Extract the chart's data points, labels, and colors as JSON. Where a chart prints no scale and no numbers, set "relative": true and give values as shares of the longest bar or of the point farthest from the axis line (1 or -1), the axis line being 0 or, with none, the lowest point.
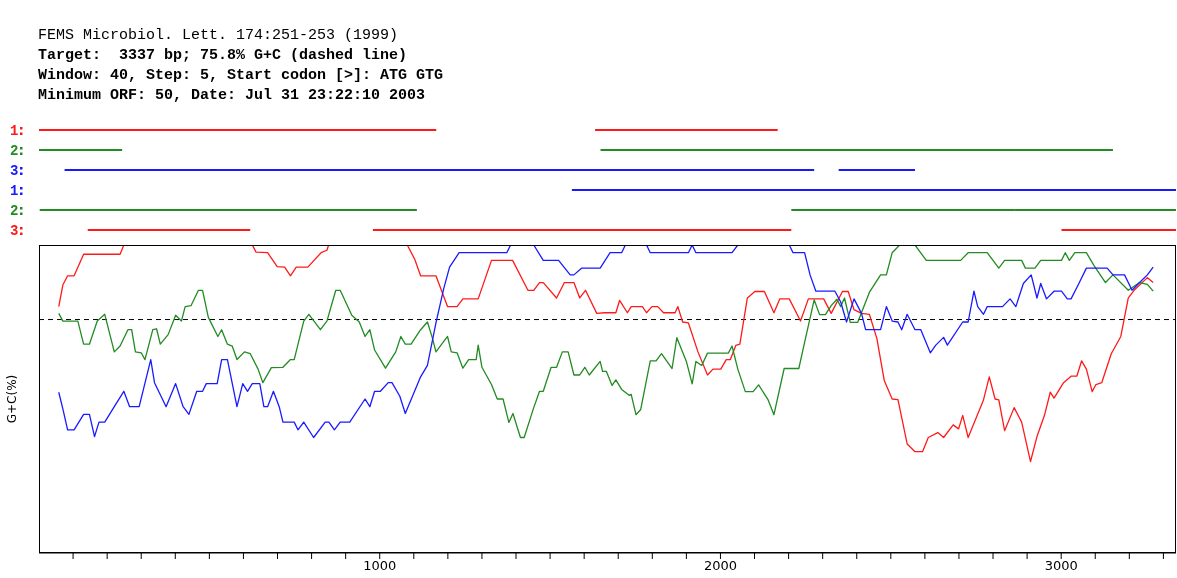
{
  "chart_data": [
    {
      "type": "bar",
      "orientation": "horizontal",
      "subtitle": "FEMS Microbiol. Lett. 174:251-253 (1999)",
      "annotations": [
        "Target:  3337 bp; 75.8% G+C (dashed line)",
        "Window: 40, Step: 5, Start codon [>]: ATG GTG",
        "Minimum ORF: 50, Date: Jul 31 23:22:10 2003"
      ],
      "categories": [
        "1",
        "2",
        "3",
        "1",
        "2",
        "3"
      ],
      "series": [
        {
          "colors": [
            "#ff1a1a",
            "#228b22",
            "#1a1aff",
            "#1a1aff",
            "#228b22",
            "#ff1a1a"
          ],
          "base": [
            0,
            0,
            75,
            1564,
            2,
            143
          ],
          "values": [
            1166,
            244,
            2200,
            1773,
            1107,
            477
          ]
        },
        {
          "colors": [
            "#ff1a1a",
            "#228b22",
            "#1a1aff",
            "#1a1aff",
            "#228b22",
            "#ff1a1a"
          ],
          "base": [
            1632,
            1648,
            2347,
            null,
            2208,
            980
          ],
          "values": [
            536,
            1504,
            224,
            null,
            654,
            1228
          ]
        },
        {
          "colors": [
            "#ff1a1a",
            "#228b22",
            "#1a1aff",
            "#1a1aff",
            "#228b22",
            "#ff1a1a"
          ],
          "base": [
            null,
            null,
            null,
            null,
            2862,
            3001
          ],
          "values": [
            null,
            null,
            null,
            null,
            475,
            336
          ]
        }
      ],
      "xlim": [
        0,
        3337
      ],
      "tick_labels": "y"
    },
    {
      "type": "line",
      "relative": true,
      "ylabel": "G+C(%)",
      "xlim": [
        0,
        3337
      ],
      "xticks": [
        {
          "value": 100,
          "label": null
        },
        {
          "value": 200,
          "label": null
        },
        {
          "value": 300,
          "label": null
        },
        {
          "value": 400,
          "label": null
        },
        {
          "value": 500,
          "label": null
        },
        {
          "value": 600,
          "label": null
        },
        {
          "value": 700,
          "label": null
        },
        {
          "value": 800,
          "label": null
        },
        {
          "value": 900,
          "label": null
        },
        1000,
        {
          "value": 1100,
          "label": null
        },
        {
          "value": 1200,
          "label": null
        },
        {
          "value": 1300,
          "label": null
        },
        {
          "value": 1400,
          "label": null
        },
        {
          "value": 1500,
          "label": null
        },
        {
          "value": 1600,
          "label": null
        },
        {
          "value": 1700,
          "label": null
        },
        {
          "value": 1800,
          "label": null
        },
        {
          "value": 1900,
          "label": null
        },
        2000,
        {
          "value": 2100,
          "label": null
        },
        {
          "value": 2200,
          "label": null
        },
        {
          "value": 2300,
          "label": null
        },
        {
          "value": 2400,
          "label": null
        },
        {
          "value": 2500,
          "label": null
        },
        {
          "value": 2600,
          "label": null
        },
        {
          "value": 2700,
          "label": null
        },
        {
          "value": 2800,
          "label": null
        },
        {
          "value": 2900,
          "label": null
        },
        3000,
        {
          "value": 3100,
          "label": null
        },
        {
          "value": 3200,
          "label": null
        },
        {
          "value": 3300,
          "label": null
        }
      ],
      "ref_lines": [
        {
          "axis": "y",
          "value": 0.758,
          "color": "#000000",
          "line_style": "dashed"
        }
      ],
      "series": [
        {
          "color": "#ff1a1a",
          "x": [
            58,
            70,
            84,
            103,
            131,
            238,
            249,
            626,
            637,
            671,
            699,
            721,
            738,
            755,
            789,
            828,
            845,
            850,
            1081,
            1103,
            1120,
            1165,
            1199,
            1227,
            1244,
            1289,
            1328,
            1390,
            1435,
            1452,
            1469,
            1480,
            1519,
            1542,
            1570,
            1587,
            1604,
            1637,
            1660,
            1693,
            1704,
            1727,
            1738,
            1771,
            1783,
            1799,
            1816,
            1833,
            1867,
            1875,
            1889,
            1906,
            1934,
            1962,
            1978,
            2001,
            2017,
            2029,
            2045,
            2057,
            2079,
            2101,
            2129,
            2157,
            2174,
            2202,
            2235,
            2258,
            2303,
            2325,
            2358,
            2375,
            2392,
            2414,
            2437,
            2459,
            2481,
            2504,
            2521,
            2548,
            2571,
            2593,
            2610,
            2638,
            2655,
            2683,
            2699,
            2711,
            2727,
            2772,
            2789,
            2806,
            2817,
            2834,
            2862,
            2884,
            2910,
            2929,
            2951,
            2968,
            2979,
            3007,
            3029,
            3046,
            3060,
            3074,
            3091,
            3102,
            3119,
            3147,
            3175,
            3197,
            3214,
            3253,
            3270
          ],
          "values": [
            0.8,
            0.87,
            0.9,
            0.9,
            0.97,
            0.97,
            1.0,
            1.0,
            0.977,
            0.975,
            0.93,
            0.928,
            0.9,
            0.928,
            0.928,
            0.975,
            0.983,
            1.0,
            1.0,
            0.953,
            0.9,
            0.9,
            0.8,
            0.8,
            0.825,
            0.825,
            0.95,
            0.95,
            0.853,
            0.853,
            0.878,
            0.878,
            0.828,
            0.878,
            0.878,
            0.828,
            0.853,
            0.778,
            0.78,
            0.78,
            0.82,
            0.78,
            0.8,
            0.8,
            0.78,
            0.8,
            0.8,
            0.78,
            0.78,
            0.8,
            0.75,
            0.747,
            0.653,
            0.578,
            0.597,
            0.597,
            0.628,
            0.628,
            0.674,
            0.678,
            0.828,
            0.849,
            0.849,
            0.78,
            0.825,
            0.825,
            0.753,
            0.825,
            0.825,
            0.778,
            0.849,
            0.849,
            0.79,
            0.778,
            0.775,
            0.697,
            0.559,
            0.5,
            0.498,
            0.354,
            0.329,
            0.329,
            0.375,
            0.391,
            0.375,
            0.416,
            0.403,
            0.447,
            0.375,
            0.497,
            0.572,
            0.5,
            0.497,
            0.397,
            0.472,
            0.425,
            0.297,
            0.378,
            0.447,
            0.522,
            0.503,
            0.553,
            0.574,
            0.574,
            0.624,
            0.597,
            0.524,
            0.547,
            0.553,
            0.647,
            0.703,
            0.828,
            0.853,
            0.894,
            0.878
          ]
        },
        {
          "color": "#228b22",
          "x": [
            58,
            70,
            114,
            131,
            148,
            171,
            193,
            221,
            238,
            261,
            272,
            283,
            300,
            311,
            334,
            345,
            356,
            379,
            401,
            418,
            429,
            446,
            468,
            480,
            497,
            525,
            536,
            553,
            567,
            581,
            603,
            620,
            643,
            657,
            682,
            716,
            738,
            749,
            777,
            792,
            826,
            845,
            871,
            884,
            918,
            940,
            957,
            971,
            985,
            1017,
            1047,
            1062,
            1075,
            1092,
            1120,
            1140,
            1154,
            1165,
            1199,
            1210,
            1227,
            1244,
            1261,
            1283,
            1289,
            1300,
            1328,
            1345,
            1362,
            1379,
            1391,
            1413,
            1424,
            1452,
            1469,
            1480,
            1503,
            1519,
            1536,
            1553,
            1570,
            1587,
            1602,
            1615,
            1647,
            1654,
            1665,
            1682,
            1693,
            1710,
            1732,
            1738,
            1752,
            1766,
            1794,
            1811,
            1827,
            1858,
            1872,
            1900,
            1917,
            1928,
            1945,
            1962,
            2023,
            2034,
            2051,
            2073,
            2096,
            2112,
            2140,
            2157,
            2187,
            2230,
            2247,
            2275,
            2291,
            2308,
            2325,
            2342,
            2353,
            2364,
            2381,
            2403,
            2437,
            2470,
            2487,
            2504,
            2526,
            2571,
            2604,
            2705,
            2727,
            2783,
            2817,
            2834,
            2884,
            2895,
            2923,
            2940,
            3001,
            3012,
            3024,
            3040,
            3074,
            3096,
            3130,
            3152,
            3197,
            3230,
            3253,
            3270
          ],
          "values": [
            0.778,
            0.753,
            0.753,
            0.678,
            0.678,
            0.753,
            0.775,
            0.653,
            0.672,
            0.725,
            0.725,
            0.653,
            0.65,
            0.628,
            0.725,
            0.728,
            0.678,
            0.709,
            0.772,
            0.753,
            0.8,
            0.803,
            0.853,
            0.853,
            0.765,
            0.703,
            0.725,
            0.678,
            0.672,
            0.628,
            0.653,
            0.647,
            0.597,
            0.553,
            0.602,
            0.603,
            0.628,
            0.628,
            0.753,
            0.775,
            0.725,
            0.753,
            0.853,
            0.853,
            0.772,
            0.75,
            0.703,
            0.725,
            0.659,
            0.6,
            0.653,
            0.703,
            0.678,
            0.678,
            0.725,
            0.75,
            0.7,
            0.653,
            0.703,
            0.653,
            0.65,
            0.6,
            0.628,
            0.628,
            0.675,
            0.603,
            0.547,
            0.5,
            0.5,
            0.424,
            0.453,
            0.375,
            0.375,
            0.472,
            0.525,
            0.525,
            0.603,
            0.603,
            0.653,
            0.653,
            0.578,
            0.578,
            0.603,
            0.578,
            0.622,
            0.59,
            0.59,
            0.544,
            0.562,
            0.531,
            0.512,
            0.515,
            0.449,
            0.466,
            0.624,
            0.624,
            0.647,
            0.599,
            0.699,
            0.622,
            0.549,
            0.622,
            0.609,
            0.649,
            0.649,
            0.672,
            0.597,
            0.524,
            0.524,
            0.546,
            0.497,
            0.449,
            0.599,
            0.599,
            0.684,
            0.822,
            0.774,
            0.774,
            0.803,
            0.824,
            0.8,
            0.828,
            0.749,
            0.749,
            0.846,
            0.903,
            0.903,
            0.975,
            1.0,
            1.0,
            0.95,
            0.95,
            0.975,
            0.975,
            0.925,
            0.95,
            0.95,
            0.925,
            0.925,
            0.95,
            0.95,
            0.975,
            0.95,
            0.975,
            0.975,
            0.934,
            0.878,
            0.903,
            0.853,
            0.878,
            0.872,
            0.85
          ]
        },
        {
          "color": "#1a1aff",
          "x": [
            58,
            70,
            84,
            103,
            131,
            148,
            163,
            176,
            193,
            221,
            249,
            266,
            294,
            328,
            339,
            373,
            401,
            423,
            440,
            463,
            480,
            491,
            523,
            536,
            553,
            581,
            598,
            612,
            626,
            648,
            660,
            671,
            688,
            705,
            716,
            749,
            760,
            777,
            806,
            840,
            851,
            867,
            884,
            912,
            957,
            971,
            985,
            1002,
            1025,
            1036,
            1059,
            1075,
            1120,
            1140,
            1165,
            1188,
            1205,
            1233,
            1373,
            1384,
            1452,
            1480,
            1525,
            1559,
            1570,
            1593,
            1647,
            1676,
            1710,
            1721,
            1783,
            1794,
            1906,
            1917,
            1928,
            2034,
            2051,
            2202,
            2213,
            2247,
            2263,
            2280,
            2336,
            2353,
            2370,
            2392,
            2414,
            2426,
            2470,
            2487,
            2504,
            2521,
            2532,
            2548,
            2571,
            2588,
            2616,
            2632,
            2655,
            2666,
            2711,
            2727,
            2744,
            2755,
            2772,
            2783,
            2828,
            2850,
            2867,
            2889,
            2912,
            2929,
            2940,
            2957,
            2979,
            3001,
            3018,
            3029,
            3052,
            3074,
            3135,
            3152,
            3186,
            3208,
            3230,
            3253,
            3270
          ],
          "values": [
            0.522,
            0.468,
            0.4,
            0.4,
            0.45,
            0.45,
            0.378,
            0.425,
            0.425,
            0.475,
            0.525,
            0.475,
            0.475,
            0.628,
            0.553,
            0.475,
            0.55,
            0.475,
            0.45,
            0.525,
            0.525,
            0.55,
            0.55,
            0.628,
            0.628,
            0.475,
            0.55,
            0.525,
            0.55,
            0.55,
            0.475,
            0.475,
            0.525,
            0.475,
            0.425,
            0.425,
            0.4,
            0.425,
            0.375,
            0.425,
            0.425,
            0.4,
            0.425,
            0.425,
            0.5,
            0.475,
            0.525,
            0.525,
            0.553,
            0.553,
            0.509,
            0.453,
            0.572,
            0.609,
            0.747,
            0.859,
            0.928,
            0.975,
            0.975,
            1.0,
            1.0,
            0.95,
            0.95,
            0.903,
            0.903,
            0.925,
            0.925,
            0.975,
            0.975,
            1.0,
            1.0,
            0.975,
            0.975,
            1.0,
            0.975,
            0.975,
            1.0,
            1.0,
            0.975,
            0.975,
            0.903,
            0.85,
            0.85,
            0.815,
            0.75,
            0.825,
            0.778,
            0.725,
            0.725,
            0.8,
            0.753,
            0.75,
            0.725,
            0.775,
            0.725,
            0.725,
            0.65,
            0.675,
            0.7,
            0.675,
            0.75,
            0.75,
            0.85,
            0.8,
            0.775,
            0.8,
            0.8,
            0.825,
            0.8,
            0.875,
            0.903,
            0.828,
            0.875,
            0.825,
            0.85,
            0.85,
            0.825,
            0.825,
            0.875,
            0.925,
            0.925,
            0.903,
            0.903,
            0.853,
            0.878,
            0.903,
            0.928
          ]
        }
      ]
    }
  ]
}
